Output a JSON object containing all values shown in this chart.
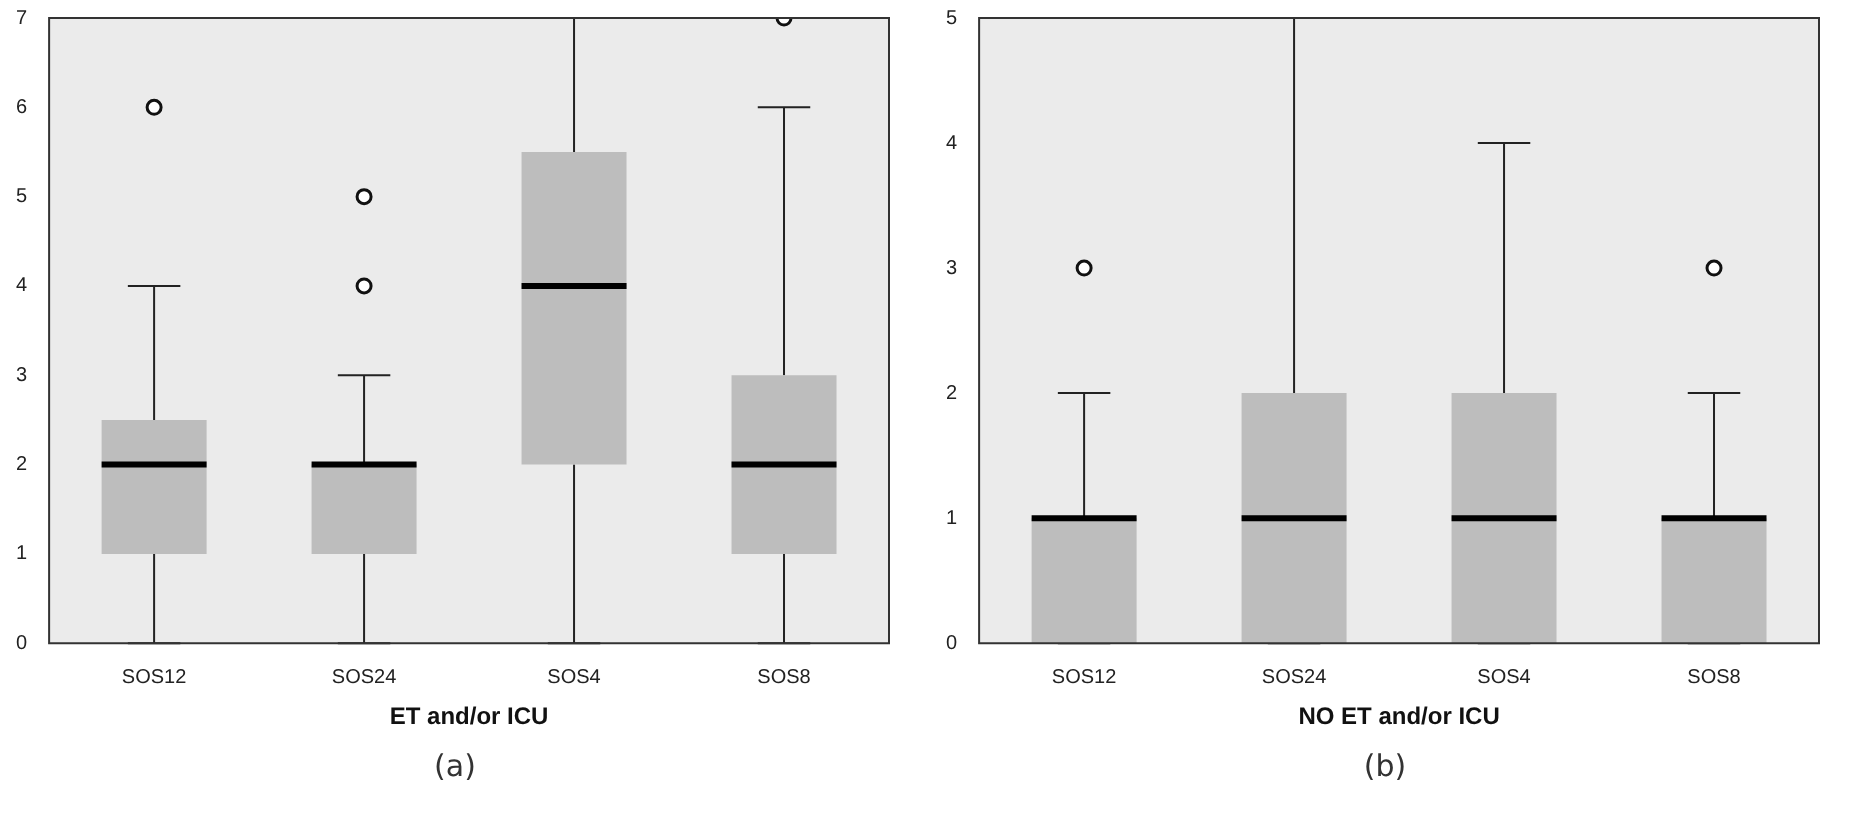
{
  "chart_data": [
    {
      "type": "box",
      "xlabel": "ET and/or ICU",
      "categories": [
        "SOS12",
        "SOS24",
        "SOS4",
        "SOS8"
      ],
      "color": "#bdbdbd",
      "ylim": [
        0,
        7
      ],
      "yticks": [
        0,
        1,
        2,
        3,
        4,
        5,
        6,
        7
      ],
      "grid": false,
      "boxes": [
        {
          "low": 0,
          "q1": 1,
          "median": 2,
          "q3": 2.5,
          "high": 4,
          "outliers": [
            6
          ]
        },
        {
          "low": 0,
          "q1": 1,
          "median": 2,
          "q3": 2,
          "high": 3,
          "outliers": [
            4,
            5
          ]
        },
        {
          "low": 0,
          "q1": 2,
          "median": 4,
          "q3": 5.5,
          "high": 7
        },
        {
          "low": 0,
          "q1": 1,
          "median": 2,
          "q3": 3,
          "high": 6,
          "outliers": [
            7
          ]
        }
      ],
      "annotations": [
        "(a)"
      ]
    },
    {
      "type": "box",
      "xlabel": "NO ET and/or ICU",
      "categories": [
        "SOS12",
        "SOS24",
        "SOS4",
        "SOS8"
      ],
      "color": "#bdbdbd",
      "ylim": [
        0,
        5
      ],
      "yticks": [
        0,
        1,
        2,
        3,
        4,
        5
      ],
      "grid": false,
      "boxes": [
        {
          "low": 0,
          "q1": 0,
          "median": 1,
          "q3": 1,
          "high": 2,
          "outliers": [
            3
          ]
        },
        {
          "low": 0,
          "q1": 0,
          "median": 1,
          "q3": 2,
          "high": 5
        },
        {
          "low": 0,
          "q1": 0,
          "median": 1,
          "q3": 2,
          "high": 4
        },
        {
          "low": 0,
          "q1": 0,
          "median": 1,
          "q3": 1,
          "high": 2,
          "outliers": [
            3
          ]
        }
      ],
      "annotations": [
        "(b)"
      ]
    }
  ]
}
